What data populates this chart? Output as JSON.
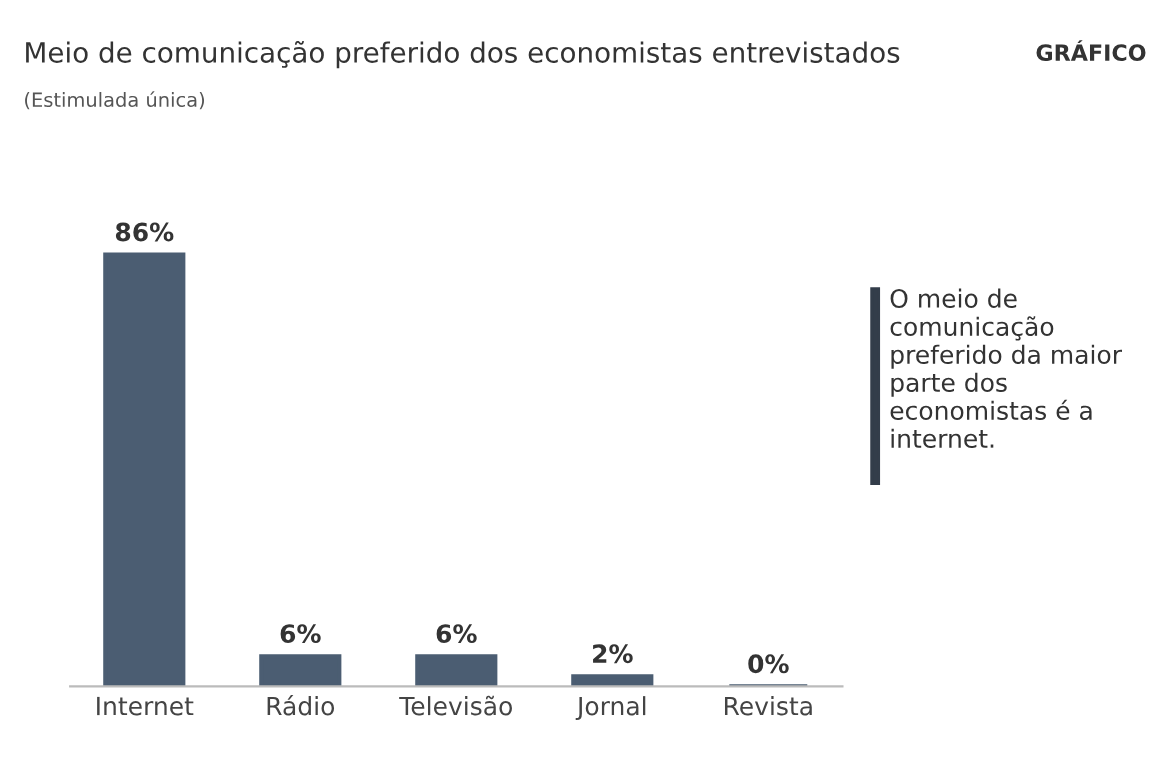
{
  "chart_data": {
    "type": "bar",
    "title": "Meio de comunicação preferido dos economistas entrevistados",
    "subtitle": "(Estimulada única)",
    "categories": [
      "Internet",
      "Rádio",
      "Televisão",
      "Jornal",
      "Revista"
    ],
    "values": [
      86,
      6,
      6,
      2,
      0
    ],
    "value_labels": [
      "86%",
      "6%",
      "6%",
      "2%",
      "0%"
    ],
    "color": "#4b5d72",
    "annotations": [
      "GRÁFICO",
      "O meio de comunicação preferido da maior parte dos economistas é a internet."
    ]
  }
}
